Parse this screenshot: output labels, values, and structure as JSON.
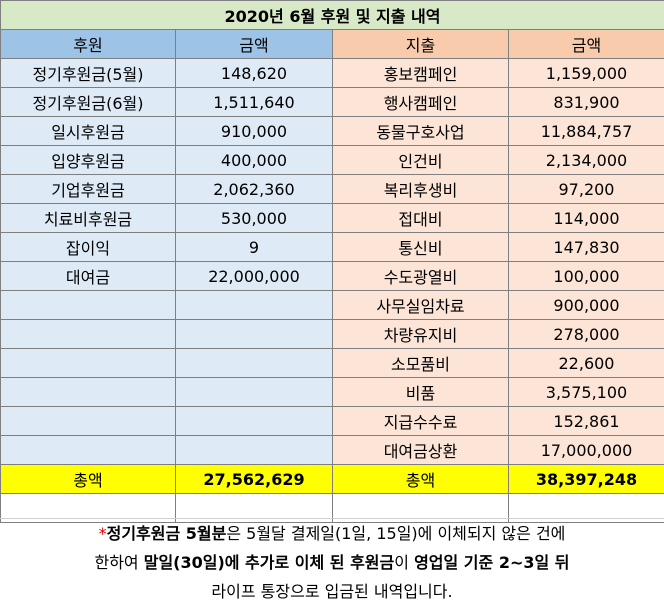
{
  "title": "2020년 6월 후원 및 지출 내역",
  "headers": {
    "income": "후원",
    "income_amount": "금액",
    "expense": "지출",
    "expense_amount": "금액"
  },
  "rows": [
    {
      "income": "정기후원금(5월)",
      "income_amount": "148,620",
      "expense": "홍보캠페인",
      "expense_amount": "1,159,000"
    },
    {
      "income": "정기후원금(6월)",
      "income_amount": "1,511,640",
      "expense": "행사캠페인",
      "expense_amount": "831,900"
    },
    {
      "income": "일시후원금",
      "income_amount": "910,000",
      "expense": "동물구호사업",
      "expense_amount": "11,884,757"
    },
    {
      "income": "입양후원금",
      "income_amount": "400,000",
      "expense": "인건비",
      "expense_amount": "2,134,000"
    },
    {
      "income": "기업후원금",
      "income_amount": "2,062,360",
      "expense": "복리후생비",
      "expense_amount": "97,200"
    },
    {
      "income": "치료비후원금",
      "income_amount": "530,000",
      "expense": "접대비",
      "expense_amount": "114,000"
    },
    {
      "income": "잡이익",
      "income_amount": "9",
      "expense": "통신비",
      "expense_amount": "147,830"
    },
    {
      "income": "대여금",
      "income_amount": "22,000,000",
      "expense": "수도광열비",
      "expense_amount": "100,000"
    },
    {
      "income": "",
      "income_amount": "",
      "expense": "사무실임차료",
      "expense_amount": "900,000"
    },
    {
      "income": "",
      "income_amount": "",
      "expense": "차량유지비",
      "expense_amount": "278,000"
    },
    {
      "income": "",
      "income_amount": "",
      "expense": "소모품비",
      "expense_amount": "22,600"
    },
    {
      "income": "",
      "income_amount": "",
      "expense": "비품",
      "expense_amount": "3,575,100"
    },
    {
      "income": "",
      "income_amount": "",
      "expense": "지급수수료",
      "expense_amount": "152,861"
    },
    {
      "income": "",
      "income_amount": "",
      "expense": "대여금상환",
      "expense_amount": "17,000,000"
    }
  ],
  "totals": {
    "income_label": "총액",
    "income_total": "27,562,629",
    "expense_label": "총액",
    "expense_total": "38,397,248"
  },
  "note": {
    "star": "*",
    "p1_bold": "정기후원금 5월분",
    "p2": "은 5월달 결제일(1일, 15일)에 이체되지 않은 건에",
    "p3": "한하여 ",
    "p4_bold": "말일(30일)에 추가로 이체 된 후원금",
    "p5": "이 ",
    "p6_bold": "영업일 기준 2~3일 뒤",
    "p7": "라이프 통장으로 입금된 내역입니다."
  }
}
